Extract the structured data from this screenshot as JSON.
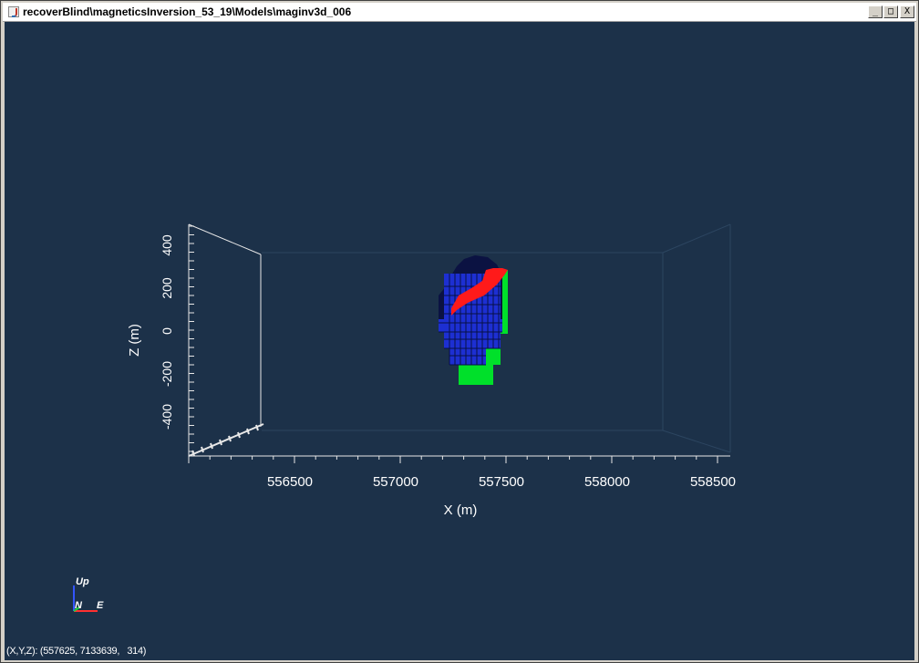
{
  "window": {
    "title": "recoverBlind\\magneticsInversion_53_19\\Models\\maginv3d_006",
    "buttons": {
      "minimize": "_",
      "maximize": "□",
      "close": "X"
    }
  },
  "viewer": {
    "x_axis_label": "X (m)",
    "z_axis_label": "Z (m)",
    "x_ticks": [
      "556500",
      "557000",
      "557500",
      "558000",
      "558500"
    ],
    "z_ticks": [
      "400",
      "200",
      "0",
      "-200",
      "-400"
    ],
    "orientation": {
      "up": "Up",
      "north": "N",
      "east": "E"
    },
    "colors": {
      "background": "#1c3149",
      "model_cells": "#1d2fd2",
      "green_body": "#00e02a",
      "red_body": "#ff1a1a"
    }
  },
  "status": {
    "coordinate_readout": "(X,Y,Z): (557625, 7133639,   314)"
  }
}
